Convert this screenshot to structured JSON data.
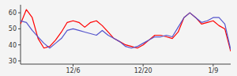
{
  "chart_data": {
    "type": "line",
    "categories": [
      null,
      null,
      null,
      null,
      null,
      null,
      null,
      null,
      null,
      "12/6",
      null,
      null,
      null,
      null,
      null,
      null,
      null,
      null,
      null,
      null,
      null,
      "12/20",
      null,
      null,
      null,
      null,
      null,
      null,
      null,
      null,
      null,
      null,
      null,
      "1/9",
      null,
      null,
      null
    ],
    "series": [
      {
        "color": "#ff0000",
        "values": [
          53,
          62,
          57,
          44,
          38,
          39,
          43,
          48,
          54,
          55,
          54,
          51,
          54,
          55,
          52,
          48,
          44,
          42,
          40,
          39,
          38,
          40,
          43,
          46,
          46,
          45,
          44,
          48,
          57,
          60,
          57,
          53,
          54,
          55,
          52,
          50,
          36
        ]
      },
      {
        "color": "#5555cc",
        "values": [
          55,
          54,
          49,
          45,
          41,
          38,
          41,
          44,
          49,
          50,
          49,
          48,
          47,
          46,
          49,
          46,
          44,
          42,
          39,
          38,
          39,
          41,
          43,
          45,
          45,
          46,
          45,
          51,
          57,
          60,
          57,
          54,
          55,
          57,
          57,
          53,
          37
        ]
      }
    ],
    "ylim": [
      28,
      65
    ],
    "yticks": [
      30,
      40,
      50,
      60
    ]
  }
}
